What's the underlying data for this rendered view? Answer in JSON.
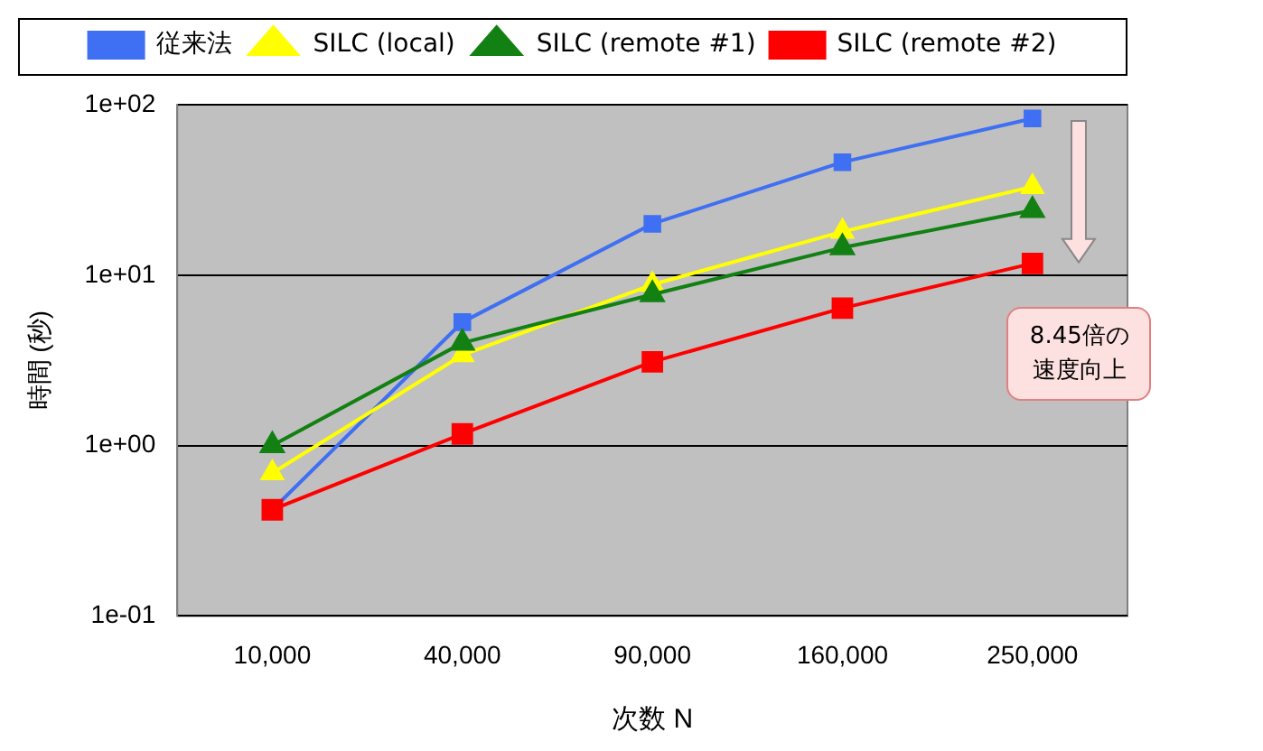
{
  "chart_data": {
    "type": "line",
    "xlabel": "次数 N",
    "ylabel": "時間 (秒)",
    "categories": [
      "10,000",
      "40,000",
      "90,000",
      "160,000",
      "250,000"
    ],
    "series": [
      {
        "name": "従来法",
        "color": "#3f6ff2",
        "marker": "square",
        "values": [
          0.42,
          5.3,
          20,
          46,
          83
        ]
      },
      {
        "name": "SILC (local)",
        "color": "#ffff00",
        "marker": "triangle",
        "values": [
          0.69,
          3.4,
          8.8,
          18,
          33
        ]
      },
      {
        "name": "SILC (remote #1)",
        "color": "#128012",
        "marker": "triangle",
        "values": [
          1.0,
          4.0,
          7.7,
          14.5,
          24
        ]
      },
      {
        "name": "SILC (remote #2)",
        "color": "#ff0000",
        "marker": "square",
        "values": [
          0.42,
          1.17,
          3.1,
          6.4,
          11.7
        ]
      }
    ],
    "log": "y",
    "ylim": [
      0.1,
      100
    ],
    "yticks": [
      {
        "value": 0.1,
        "label": "1e-01"
      },
      {
        "value": 1,
        "label": "1e+00"
      },
      {
        "value": 10,
        "label": "1e+01"
      },
      {
        "value": 100,
        "label": "1e+02"
      }
    ],
    "grid": "y",
    "legend": "top",
    "annotations": [
      "8.45倍の速度向上"
    ]
  }
}
